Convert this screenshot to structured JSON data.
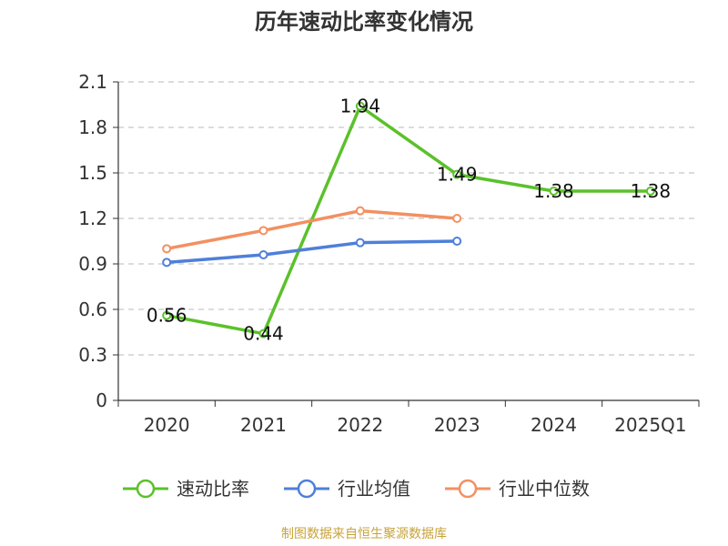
{
  "chart_data": {
    "type": "line",
    "title": "历年速动比率变化情况",
    "categories": [
      "2020",
      "2021",
      "2022",
      "2023",
      "2024",
      "2025Q1"
    ],
    "yticks": [
      "0",
      "0.3",
      "0.6",
      "0.9",
      "1.2",
      "1.5",
      "1.8",
      "2.1"
    ],
    "ylim": [
      0,
      2.1
    ],
    "grid": true,
    "legend_position": "bottom",
    "series": [
      {
        "name": "速动比率",
        "color": "#5bc12a",
        "values": [
          0.56,
          0.44,
          1.94,
          1.49,
          1.38,
          1.38
        ],
        "labels": [
          "0.56",
          "0.44",
          "1.94",
          "1.49",
          "1.38",
          "1.38"
        ]
      },
      {
        "name": "行业均值",
        "color": "#4f7fd9",
        "values": [
          0.91,
          0.96,
          1.04,
          1.05,
          null,
          null
        ]
      },
      {
        "name": "行业中位数",
        "color": "#f29061",
        "values": [
          1.0,
          1.12,
          1.25,
          1.2,
          null,
          null
        ]
      }
    ]
  },
  "footer": {
    "source": "制图数据来自恒生聚源数据库"
  }
}
